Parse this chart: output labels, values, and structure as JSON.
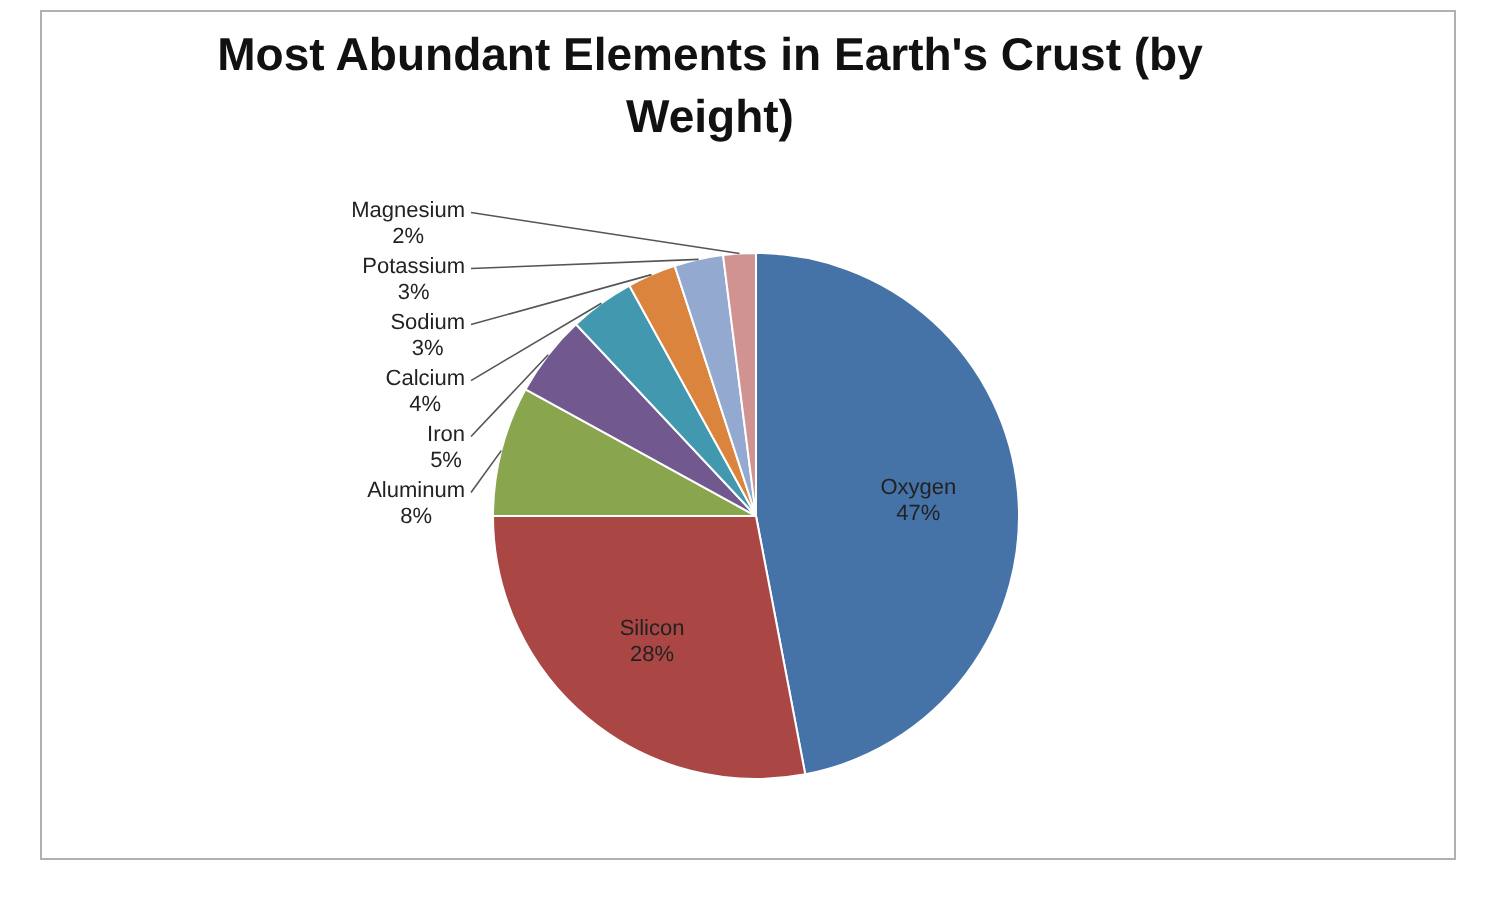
{
  "chart_data": {
    "type": "pie",
    "title": "Most Abundant Elements in Earth's Crust (by Weight)",
    "categories": [
      "Oxygen",
      "Silicon",
      "Aluminum",
      "Iron",
      "Calcium",
      "Sodium",
      "Potassium",
      "Magnesium"
    ],
    "values": [
      47,
      28,
      8,
      5,
      4,
      3,
      3,
      2
    ],
    "colors": [
      "#4572a7",
      "#aa4643",
      "#89a54e",
      "#71588f",
      "#4198af",
      "#db843d",
      "#93a9cf",
      "#d19392"
    ],
    "value_labels": [
      "47%",
      "28%",
      "8%",
      "5%",
      "4%",
      "3%",
      "3%",
      "2%"
    ],
    "legend": false
  }
}
